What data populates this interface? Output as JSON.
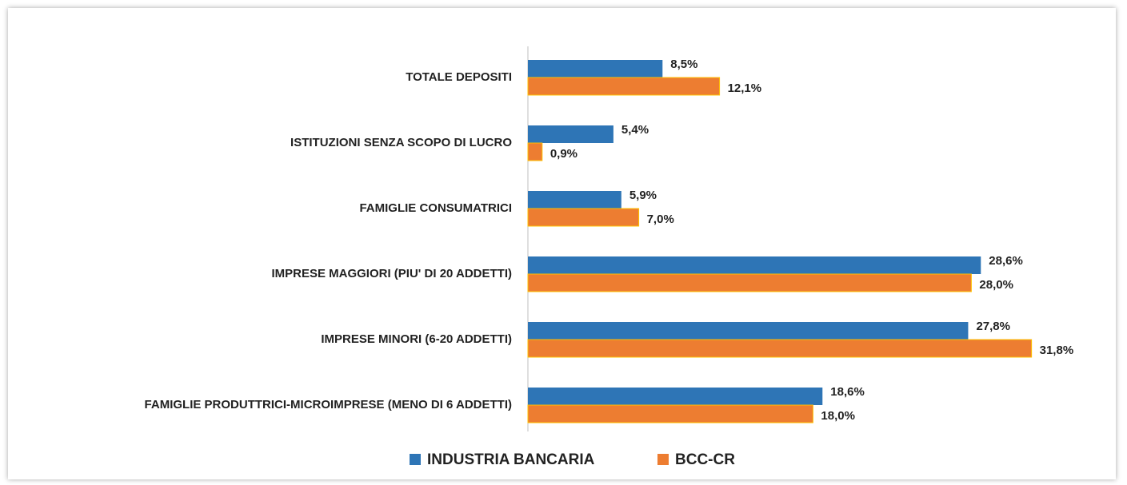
{
  "chart_data": {
    "type": "hbar",
    "categories": [
      "TOTALE DEPOSITI",
      "ISTITUZIONI SENZA SCOPO DI LUCRO",
      "FAMIGLIE CONSUMATRICI",
      "IMPRESE MAGGIORI (PIU' DI 20 ADDETTI)",
      "IMPRESE MINORI (6-20 ADDETTI)",
      "FAMIGLIE PRODUTTRICI-MICROIMPRESE (MENO DI 6 ADDETTI)"
    ],
    "series": [
      {
        "name": "INDUSTRIA BANCARIA",
        "color": "#2e75b6",
        "values": [
          8.5,
          5.4,
          5.9,
          28.6,
          27.8,
          18.6
        ],
        "value_labels": [
          "8,5%",
          "5,4%",
          "5,9%",
          "28,6%",
          "27,8%",
          "18,6%"
        ]
      },
      {
        "name": "BCC-CR",
        "color": "#ed7d31",
        "values": [
          12.1,
          0.9,
          7.0,
          28.0,
          31.8,
          18.0
        ],
        "value_labels": [
          "12,1%",
          "0,9%",
          "7,0%",
          "28,0%",
          "31,8%",
          "18,0%"
        ]
      }
    ],
    "xlim": [
      0,
      35
    ],
    "legend": "bottom"
  }
}
